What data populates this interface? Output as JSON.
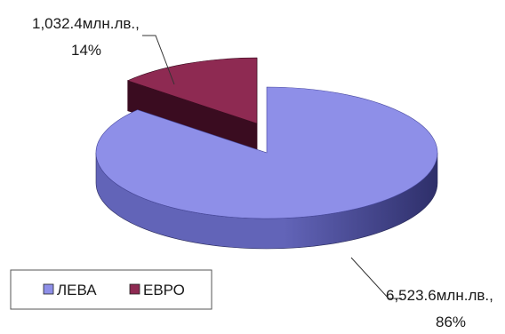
{
  "chart_data": {
    "type": "pie",
    "style": "3d-exploded",
    "slices": [
      {
        "name": "ЛЕВА",
        "value": 6523.6,
        "label_value": "6,523.6млн.лв.,",
        "label_percent": "86%",
        "color": "#8e8fe8",
        "side_color": "#6264b8",
        "dark_color": "#2e2f6a"
      },
      {
        "name": "ЕВРО",
        "value": 1032.4,
        "label_value": "1,032.4млн.лв.,",
        "label_percent": "14%",
        "color": "#8e2a52",
        "side_color": "#5a1632",
        "dark_color": "#3a0c20"
      }
    ],
    "legend": {
      "placement": "bottom-left",
      "entries": [
        "ЛЕВА",
        "ЕВРО"
      ]
    }
  }
}
